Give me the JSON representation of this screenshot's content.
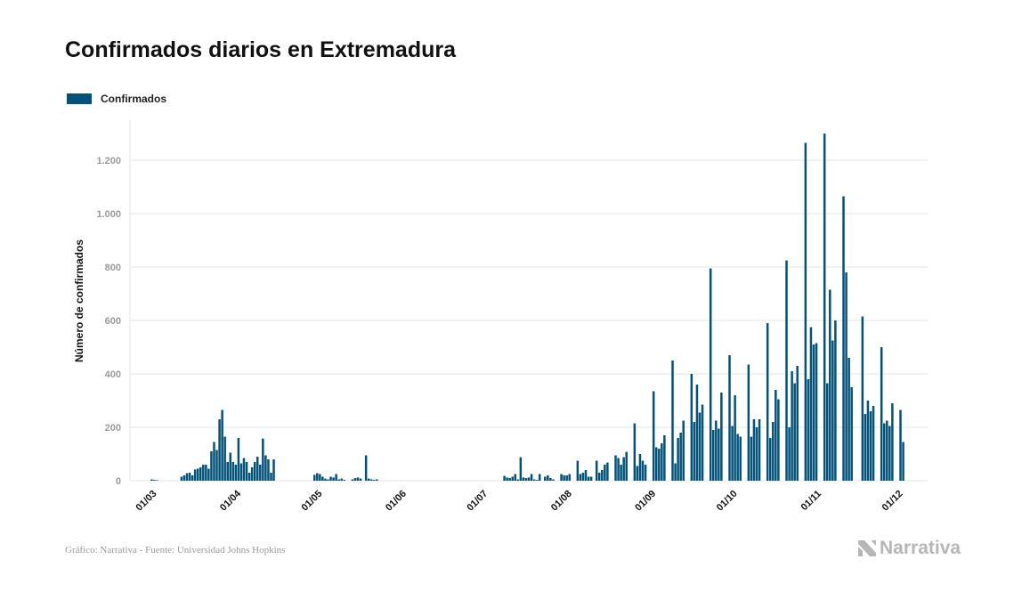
{
  "title": "Confirmados diarios en Extremadura",
  "source": "Gráfico: Narrativa - Fuente: Universidad Johns Hopkins",
  "brand": "Narrativa",
  "colors": {
    "bar": "#02527a",
    "grid": "#e6e6e6",
    "brand": "#b6b6b6"
  },
  "chart_data": {
    "type": "bar",
    "ylabel": "Número de confirmados",
    "ylim": [
      0,
      1350
    ],
    "yticks": [
      0,
      200,
      400,
      600,
      800,
      1000,
      1200
    ],
    "ytick_labels": [
      "0",
      "200",
      "400",
      "600",
      "800",
      "1.000",
      "1.200"
    ],
    "xlim": [
      "2020-02-22",
      "2020-12-12"
    ],
    "xticks": [
      "2020-03-01",
      "2020-04-01",
      "2020-05-01",
      "2020-06-01",
      "2020-07-01",
      "2020-08-01",
      "2020-09-01",
      "2020-10-01",
      "2020-11-01",
      "2020-12-01"
    ],
    "xtick_labels": [
      "01/03",
      "01/04",
      "01/05",
      "01/06",
      "01/07",
      "01/08",
      "01/09",
      "01/10",
      "01/11",
      "01/12"
    ],
    "grid": true,
    "legend": {
      "position": "top-left",
      "entries": [
        "Confirmados"
      ]
    },
    "series": [
      {
        "name": "Confirmados",
        "start_date": "2020-03-01",
        "values": [
          5,
          3,
          2,
          0,
          0,
          0,
          0,
          0,
          0,
          0,
          0,
          15,
          20,
          28,
          30,
          20,
          42,
          45,
          50,
          60,
          60,
          45,
          110,
          145,
          115,
          230,
          265,
          165,
          70,
          105,
          70,
          60,
          160,
          65,
          85,
          70,
          30,
          50,
          70,
          90,
          60,
          158,
          95,
          80,
          30,
          80,
          0,
          0,
          0,
          0,
          0,
          0,
          0,
          0,
          0,
          0,
          0,
          0,
          0,
          0,
          22,
          28,
          25,
          15,
          8,
          5,
          15,
          12,
          25,
          5,
          8,
          3,
          0,
          0,
          5,
          10,
          12,
          8,
          0,
          95,
          8,
          5,
          3,
          5,
          0,
          0,
          0,
          0,
          0,
          0,
          0,
          0,
          0,
          0,
          0,
          0,
          0,
          0,
          0,
          0,
          0,
          0,
          0,
          0,
          0,
          0,
          0,
          0,
          0,
          0,
          0,
          0,
          0,
          0,
          0,
          0,
          0,
          0,
          0,
          0,
          0,
          0,
          0,
          0,
          0,
          0,
          0,
          0,
          0,
          0,
          18,
          12,
          10,
          15,
          25,
          5,
          88,
          12,
          10,
          12,
          25,
          5,
          3,
          25,
          0,
          15,
          20,
          10,
          5,
          0,
          0,
          25,
          20,
          20,
          25,
          0,
          0,
          75,
          25,
          30,
          40,
          15,
          15,
          0,
          75,
          30,
          40,
          60,
          68,
          0,
          0,
          95,
          85,
          60,
          88,
          108,
          0,
          0,
          215,
          55,
          100,
          75,
          60,
          0,
          0,
          335,
          125,
          120,
          140,
          170,
          0,
          0,
          450,
          65,
          160,
          180,
          225,
          0,
          0,
          400,
          220,
          360,
          255,
          285,
          0,
          0,
          795,
          190,
          225,
          195,
          330,
          0,
          0,
          470,
          205,
          320,
          175,
          165,
          0,
          0,
          435,
          165,
          230,
          200,
          230,
          0,
          0,
          590,
          160,
          220,
          340,
          305,
          0,
          0,
          825,
          200,
          410,
          365,
          430,
          0,
          0,
          1265,
          380,
          575,
          510,
          515,
          0,
          0,
          1300,
          365,
          715,
          525,
          600,
          0,
          0,
          1065,
          780,
          460,
          350,
          0,
          0,
          0,
          615,
          250,
          300,
          260,
          280,
          0,
          0,
          500,
          215,
          225,
          205,
          290,
          0,
          0,
          265,
          145
        ]
      }
    ]
  }
}
